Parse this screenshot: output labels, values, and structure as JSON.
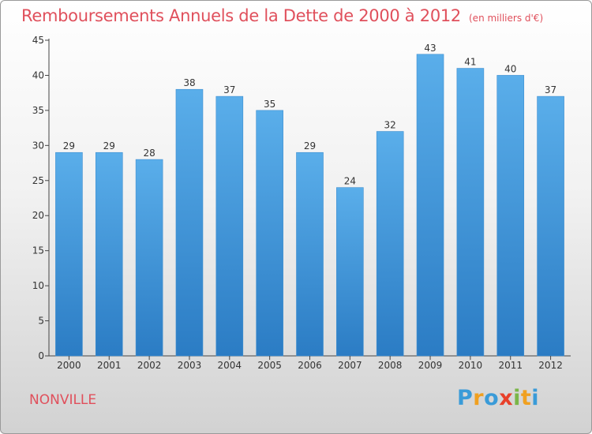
{
  "chart_data": {
    "type": "bar",
    "title": "Remboursements Annuels de la Dette de 2000 à 2012",
    "subtitle": "(en milliers d'€)",
    "categories": [
      "2000",
      "2001",
      "2002",
      "2003",
      "2004",
      "2005",
      "2006",
      "2007",
      "2008",
      "2009",
      "2010",
      "2011",
      "2012"
    ],
    "values": [
      29,
      29,
      28,
      38,
      37,
      35,
      29,
      24,
      32,
      43,
      41,
      40,
      37
    ],
    "ylim": [
      0,
      45
    ],
    "yticks": [
      0,
      5,
      10,
      15,
      20,
      25,
      30,
      35,
      40,
      45
    ],
    "xlabel": "",
    "ylabel": "",
    "grid": false,
    "bar_color": "#5aaeea",
    "bar_color_dark": "#2b7cc4"
  },
  "commune": "NONVILLE",
  "logo": {
    "letters": [
      "P",
      "r",
      "o",
      "x",
      "i",
      "t",
      "i"
    ],
    "colors": [
      "#3a9bd8",
      "#f0a020",
      "#3a9bd8",
      "#e8402a",
      "#7ab648",
      "#f0a020",
      "#3a9bd8"
    ]
  },
  "colors": {
    "title": "#e0505c",
    "axis": "#444444"
  }
}
